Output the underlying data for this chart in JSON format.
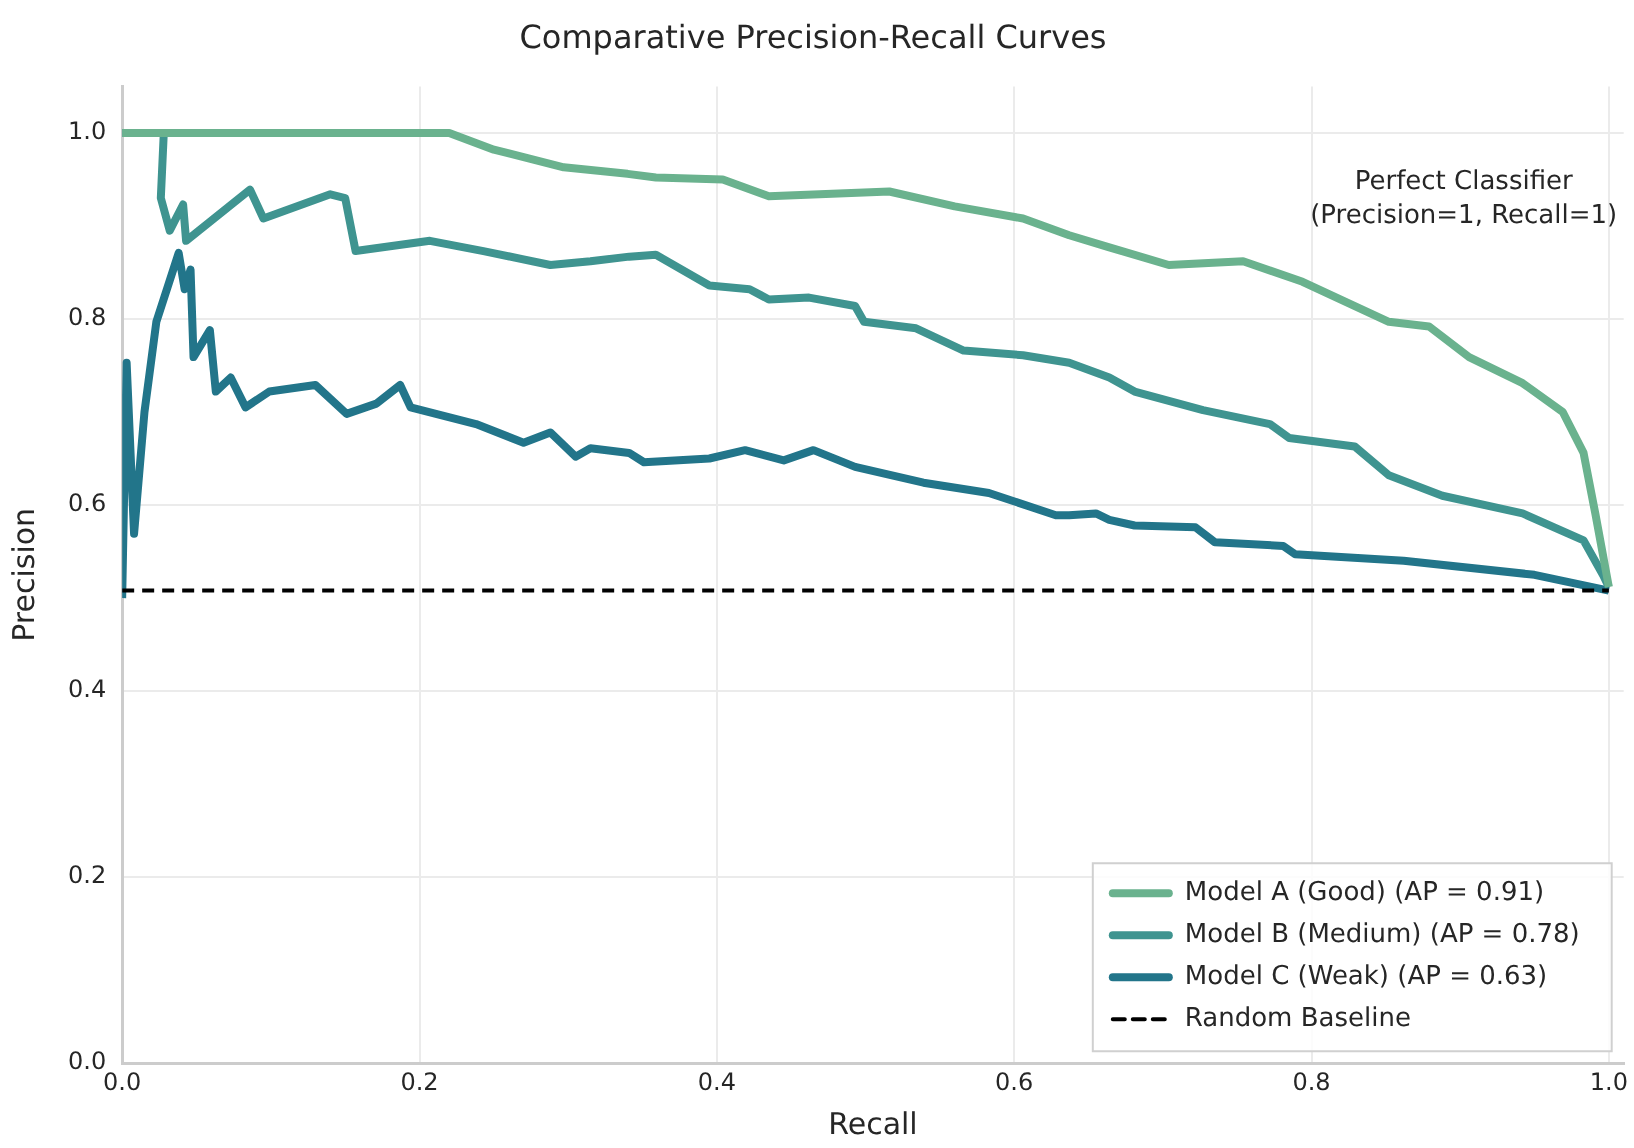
{
  "chart_data": {
    "type": "line",
    "title": "Comparative Precision-Recall Curves",
    "xlabel": "Recall",
    "ylabel": "Precision",
    "xlim": [
      0,
      1.01
    ],
    "xticks": [
      {
        "value": 0,
        "label": "0.0"
      },
      0.2,
      0.4,
      0.6,
      0.8,
      {
        "value": 1.0,
        "label": "1.0"
      }
    ],
    "ylim": [
      0,
      1.05
    ],
    "yticks": [
      {
        "value": 0,
        "label": "0.0"
      },
      0.2,
      0.4,
      0.6,
      0.8,
      {
        "value": 1.0,
        "label": "1.0"
      }
    ],
    "grid": true,
    "legend": "bottom right",
    "marker": "none",
    "line_style": "solid",
    "annotations": [
      "Perfect Classifier\n(Precision=1, Recall=1)"
    ],
    "series": [
      {
        "name": "Model A (Good) (AP = 0.91)",
        "color": "#6ab28e",
        "x": [
          0,
          0.22,
          0.25,
          0.297,
          0.34,
          0.359,
          0.404,
          0.435,
          0.516,
          0.56,
          0.606,
          0.637,
          0.664,
          0.704,
          0.754,
          0.794,
          0.852,
          0.879,
          0.906,
          0.942,
          0.969,
          0.983,
          0.991,
          1.0
        ],
        "values": [
          1.0,
          1.0,
          0.982,
          0.963,
          0.956,
          0.952,
          0.95,
          0.932,
          0.937,
          0.921,
          0.908,
          0.89,
          0.877,
          0.858,
          0.862,
          0.84,
          0.797,
          0.792,
          0.759,
          0.731,
          0.7,
          0.656,
          0.59,
          0.512
        ]
      },
      {
        "name": "Model B (Medium) (AP = 0.78)",
        "color": "#3f9490",
        "x": [
          0,
          0.028,
          0.026,
          0.032,
          0.041,
          0.043,
          0.086,
          0.095,
          0.14,
          0.15,
          0.157,
          0.207,
          0.243,
          0.288,
          0.315,
          0.341,
          0.359,
          0.395,
          0.422,
          0.435,
          0.462,
          0.493,
          0.499,
          0.534,
          0.566,
          0.606,
          0.637,
          0.664,
          0.681,
          0.727,
          0.772,
          0.785,
          0.829,
          0.852,
          0.888,
          0.942,
          0.983,
          0.996,
          1.0
        ],
        "values": [
          1.0,
          1.0,
          0.93,
          0.895,
          0.923,
          0.884,
          0.939,
          0.908,
          0.934,
          0.93,
          0.873,
          0.884,
          0.873,
          0.858,
          0.862,
          0.867,
          0.869,
          0.836,
          0.832,
          0.821,
          0.823,
          0.814,
          0.797,
          0.79,
          0.766,
          0.761,
          0.753,
          0.737,
          0.722,
          0.702,
          0.687,
          0.672,
          0.663,
          0.632,
          0.61,
          0.591,
          0.562,
          0.525,
          0.512
        ]
      },
      {
        "name": "Model C (Weak) (AP = 0.63)",
        "color": "#22758a",
        "x": [
          0,
          0.003,
          0.008,
          0.015,
          0.023,
          0.038,
          0.042,
          0.046,
          0.048,
          0.059,
          0.063,
          0.073,
          0.083,
          0.099,
          0.13,
          0.151,
          0.171,
          0.187,
          0.194,
          0.238,
          0.27,
          0.288,
          0.305,
          0.315,
          0.341,
          0.351,
          0.395,
          0.419,
          0.445,
          0.465,
          0.493,
          0.539,
          0.583,
          0.628,
          0.637,
          0.655,
          0.664,
          0.681,
          0.722,
          0.735,
          0.781,
          0.789,
          0.862,
          0.95,
          1.0
        ],
        "values": [
          0.5,
          0.753,
          0.569,
          0.7,
          0.797,
          0.871,
          0.832,
          0.853,
          0.759,
          0.788,
          0.722,
          0.737,
          0.705,
          0.722,
          0.729,
          0.698,
          0.709,
          0.729,
          0.705,
          0.687,
          0.667,
          0.678,
          0.652,
          0.661,
          0.656,
          0.646,
          0.65,
          0.659,
          0.648,
          0.659,
          0.641,
          0.624,
          0.613,
          0.589,
          0.589,
          0.591,
          0.584,
          0.578,
          0.576,
          0.56,
          0.556,
          0.547,
          0.54,
          0.525,
          0.508
        ]
      },
      {
        "name": "Random Baseline",
        "color": "#000000",
        "line_style": "dashed",
        "x": [
          0,
          1.0
        ],
        "values": [
          0.508,
          0.508
        ]
      }
    ]
  }
}
